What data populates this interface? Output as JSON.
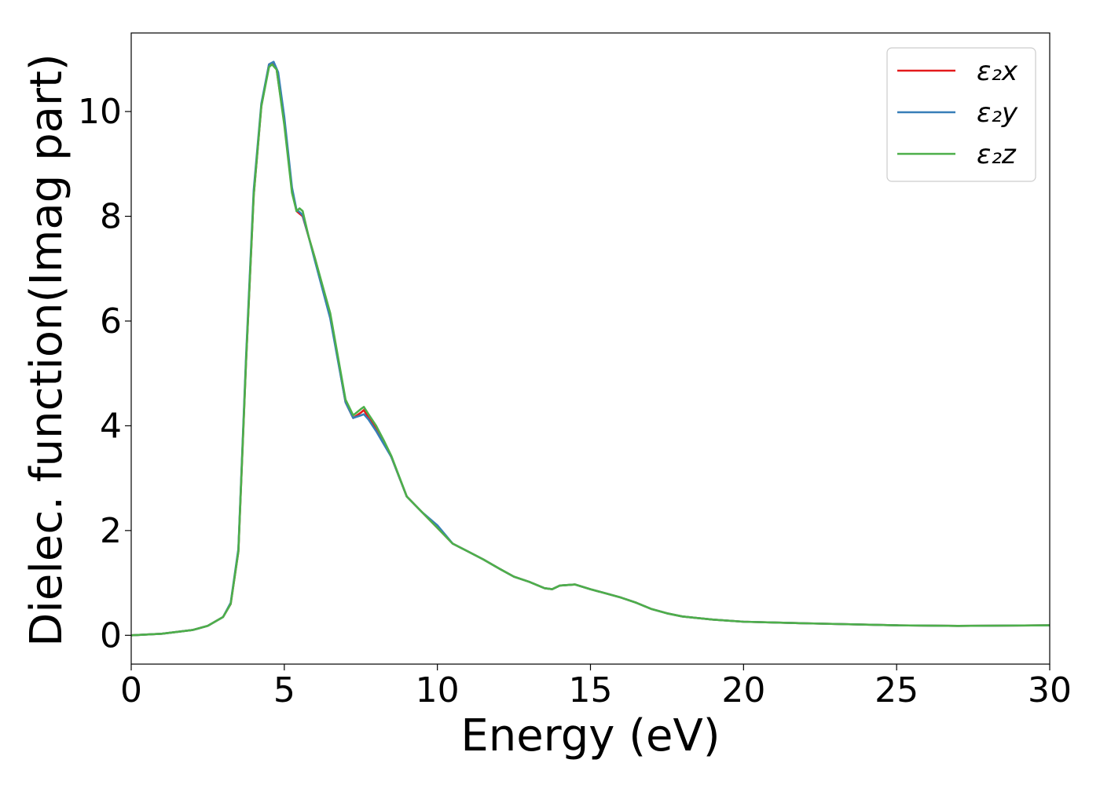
{
  "chart_data": {
    "type": "line",
    "title": "",
    "xlabel": "Energy (eV)",
    "ylabel": "Dielec. function(Imag part)",
    "xlim": [
      0,
      30
    ],
    "ylim": [
      -0.55,
      11.5
    ],
    "xticks": [
      0,
      5,
      10,
      15,
      20,
      25,
      30
    ],
    "yticks": [
      0,
      2,
      4,
      6,
      8,
      10
    ],
    "grid": false,
    "legend_placement": "top-right",
    "legend_labels": [
      "ε₂x",
      "ε₂y",
      "ε₂z"
    ],
    "series": [
      {
        "name": "ε₂x",
        "color": "#e41a1c",
        "points": [
          [
            0,
            0.0
          ],
          [
            1,
            0.03
          ],
          [
            2,
            0.1
          ],
          [
            2.5,
            0.18
          ],
          [
            3,
            0.35
          ],
          [
            3.25,
            0.6
          ],
          [
            3.5,
            1.6
          ],
          [
            3.75,
            5.2
          ],
          [
            4,
            8.4
          ],
          [
            4.25,
            10.1
          ],
          [
            4.5,
            10.9
          ],
          [
            4.6,
            10.93
          ],
          [
            4.75,
            10.8
          ],
          [
            5,
            9.8
          ],
          [
            5.25,
            8.5
          ],
          [
            5.4,
            8.1
          ],
          [
            5.5,
            8.05
          ],
          [
            5.6,
            8.0
          ],
          [
            5.8,
            7.6
          ],
          [
            6,
            7.2
          ],
          [
            6.5,
            6.1
          ],
          [
            7,
            4.45
          ],
          [
            7.25,
            4.15
          ],
          [
            7.5,
            4.25
          ],
          [
            7.6,
            4.3
          ],
          [
            7.75,
            4.15
          ],
          [
            8,
            3.95
          ],
          [
            8.25,
            3.7
          ],
          [
            8.5,
            3.4
          ],
          [
            9,
            2.65
          ],
          [
            9.5,
            2.35
          ],
          [
            10,
            2.05
          ],
          [
            10.5,
            1.75
          ],
          [
            11,
            1.6
          ],
          [
            11.5,
            1.45
          ],
          [
            12,
            1.28
          ],
          [
            12.5,
            1.12
          ],
          [
            13,
            1.02
          ],
          [
            13.5,
            0.9
          ],
          [
            13.75,
            0.88
          ],
          [
            14,
            0.95
          ],
          [
            14.5,
            0.97
          ],
          [
            15,
            0.88
          ],
          [
            15.5,
            0.8
          ],
          [
            16,
            0.72
          ],
          [
            16.5,
            0.62
          ],
          [
            17,
            0.5
          ],
          [
            17.5,
            0.42
          ],
          [
            18,
            0.36
          ],
          [
            19,
            0.3
          ],
          [
            20,
            0.26
          ],
          [
            22,
            0.23
          ],
          [
            25,
            0.19
          ],
          [
            27,
            0.18
          ],
          [
            30,
            0.19
          ]
        ]
      },
      {
        "name": "ε₂y",
        "color": "#377eb8",
        "points": [
          [
            0,
            0.0
          ],
          [
            1,
            0.03
          ],
          [
            2,
            0.1
          ],
          [
            2.5,
            0.18
          ],
          [
            3,
            0.35
          ],
          [
            3.25,
            0.62
          ],
          [
            3.5,
            1.65
          ],
          [
            3.75,
            5.3
          ],
          [
            4,
            8.5
          ],
          [
            4.25,
            10.15
          ],
          [
            4.5,
            10.9
          ],
          [
            4.65,
            10.95
          ],
          [
            4.8,
            10.75
          ],
          [
            5,
            9.9
          ],
          [
            5.25,
            8.55
          ],
          [
            5.4,
            8.12
          ],
          [
            5.5,
            8.08
          ],
          [
            5.6,
            8.02
          ],
          [
            5.8,
            7.6
          ],
          [
            6,
            7.15
          ],
          [
            6.5,
            6.05
          ],
          [
            7,
            4.45
          ],
          [
            7.25,
            4.15
          ],
          [
            7.5,
            4.2
          ],
          [
            7.6,
            4.22
          ],
          [
            7.75,
            4.12
          ],
          [
            8,
            3.9
          ],
          [
            8.25,
            3.65
          ],
          [
            8.5,
            3.4
          ],
          [
            9,
            2.65
          ],
          [
            9.5,
            2.35
          ],
          [
            10,
            2.1
          ],
          [
            10.5,
            1.75
          ],
          [
            11,
            1.6
          ],
          [
            11.5,
            1.45
          ],
          [
            12,
            1.28
          ],
          [
            12.5,
            1.12
          ],
          [
            13,
            1.02
          ],
          [
            13.5,
            0.9
          ],
          [
            13.75,
            0.88
          ],
          [
            14,
            0.95
          ],
          [
            14.5,
            0.97
          ],
          [
            15,
            0.88
          ],
          [
            15.5,
            0.8
          ],
          [
            16,
            0.72
          ],
          [
            16.5,
            0.62
          ],
          [
            17,
            0.5
          ],
          [
            17.5,
            0.42
          ],
          [
            18,
            0.36
          ],
          [
            19,
            0.3
          ],
          [
            20,
            0.26
          ],
          [
            22,
            0.23
          ],
          [
            25,
            0.19
          ],
          [
            27,
            0.18
          ],
          [
            30,
            0.19
          ]
        ]
      },
      {
        "name": "ε₂z",
        "color": "#4daf4a",
        "points": [
          [
            0,
            0.0
          ],
          [
            1,
            0.03
          ],
          [
            2,
            0.1
          ],
          [
            2.5,
            0.18
          ],
          [
            3,
            0.35
          ],
          [
            3.25,
            0.6
          ],
          [
            3.5,
            1.6
          ],
          [
            3.75,
            5.2
          ],
          [
            4,
            8.4
          ],
          [
            4.25,
            10.1
          ],
          [
            4.5,
            10.85
          ],
          [
            4.6,
            10.9
          ],
          [
            4.75,
            10.8
          ],
          [
            5,
            9.75
          ],
          [
            5.25,
            8.45
          ],
          [
            5.4,
            8.1
          ],
          [
            5.5,
            8.15
          ],
          [
            5.6,
            8.1
          ],
          [
            5.8,
            7.6
          ],
          [
            6,
            7.2
          ],
          [
            6.5,
            6.15
          ],
          [
            7,
            4.5
          ],
          [
            7.25,
            4.2
          ],
          [
            7.5,
            4.32
          ],
          [
            7.6,
            4.36
          ],
          [
            7.75,
            4.22
          ],
          [
            8,
            4.0
          ],
          [
            8.25,
            3.72
          ],
          [
            8.5,
            3.42
          ],
          [
            9,
            2.65
          ],
          [
            9.5,
            2.35
          ],
          [
            10,
            2.05
          ],
          [
            10.5,
            1.75
          ],
          [
            11,
            1.6
          ],
          [
            11.5,
            1.45
          ],
          [
            12,
            1.28
          ],
          [
            12.5,
            1.12
          ],
          [
            13,
            1.02
          ],
          [
            13.5,
            0.9
          ],
          [
            13.75,
            0.88
          ],
          [
            14,
            0.95
          ],
          [
            14.5,
            0.97
          ],
          [
            15,
            0.88
          ],
          [
            15.5,
            0.8
          ],
          [
            16,
            0.72
          ],
          [
            16.5,
            0.62
          ],
          [
            17,
            0.5
          ],
          [
            17.5,
            0.42
          ],
          [
            18,
            0.36
          ],
          [
            19,
            0.3
          ],
          [
            20,
            0.26
          ],
          [
            22,
            0.23
          ],
          [
            25,
            0.19
          ],
          [
            27,
            0.18
          ],
          [
            30,
            0.19
          ]
        ]
      }
    ]
  }
}
